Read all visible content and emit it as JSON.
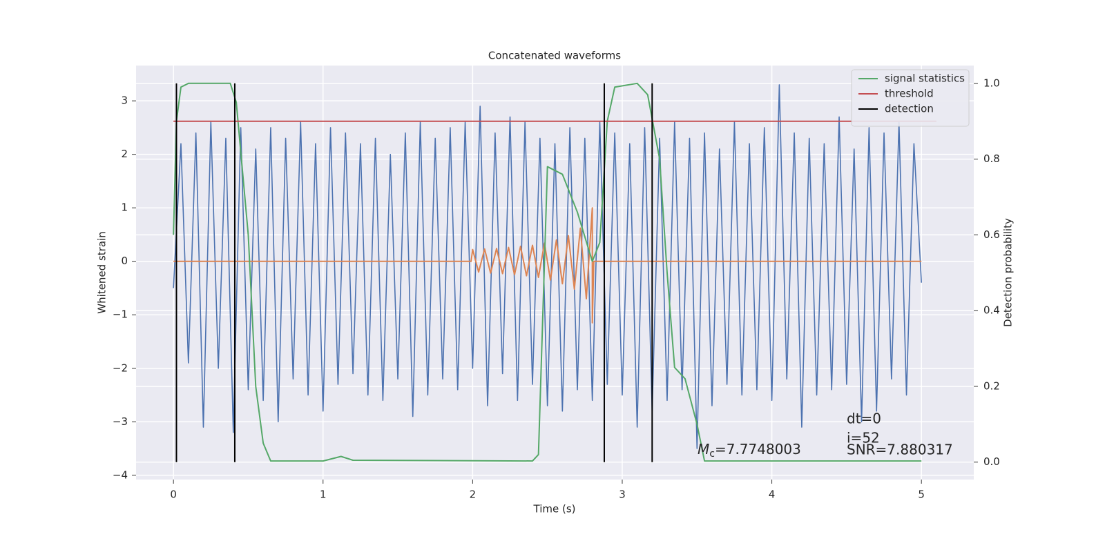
{
  "chart_data": {
    "type": "line",
    "title": "Concatenated waveforms",
    "xlabel": "Time (s)",
    "ylabel": "Whitened strain",
    "y2label": "Detection probability",
    "xlim": [
      -0.25,
      5.35
    ],
    "ylim": [
      -4.08,
      3.66
    ],
    "y2lim": [
      -0.046,
      1.047
    ],
    "xticks": [
      0,
      1,
      2,
      3,
      4,
      5
    ],
    "yticks": [
      {
        "value": -4,
        "label": "−4"
      },
      {
        "value": -3,
        "label": "−3"
      },
      {
        "value": -2,
        "label": "−2"
      },
      {
        "value": -1,
        "label": "−1"
      },
      0,
      1,
      2,
      3
    ],
    "y2ticks": [
      {
        "value": 0,
        "label": "0.0"
      },
      0.2,
      0.4,
      0.6,
      0.8,
      {
        "value": 1,
        "label": "1.0"
      }
    ],
    "grid": true,
    "legend": "upper right",
    "series": [
      {
        "color": "#4c72b0",
        "x": [
          0,
          0.05,
          0.1,
          0.15,
          0.2,
          0.25,
          0.3,
          0.35,
          0.4,
          0.45,
          0.5,
          0.55,
          0.6,
          0.65,
          0.7,
          0.75,
          0.8,
          0.85,
          0.9,
          0.95,
          1,
          1.05,
          1.1,
          1.15,
          1.2,
          1.25,
          1.3,
          1.35,
          1.4,
          1.45,
          1.5,
          1.55,
          1.6,
          1.65,
          1.7,
          1.75,
          1.8,
          1.85,
          1.9,
          1.95,
          2,
          2.05,
          2.1,
          2.15,
          2.2,
          2.25,
          2.3,
          2.35,
          2.4,
          2.45,
          2.5,
          2.55,
          2.6,
          2.65,
          2.7,
          2.75,
          2.8,
          2.85,
          2.9,
          2.95,
          3,
          3.05,
          3.1,
          3.15,
          3.2,
          3.25,
          3.3,
          3.35,
          3.4,
          3.45,
          3.5,
          3.55,
          3.6,
          3.65,
          3.7,
          3.75,
          3.8,
          3.85,
          3.9,
          3.95,
          4,
          4.05,
          4.1,
          4.15,
          4.2,
          4.25,
          4.3,
          4.35,
          4.4,
          4.45,
          4.5,
          4.55,
          4.6,
          4.65,
          4.7,
          4.75,
          4.8,
          4.85,
          4.9,
          4.95,
          5
        ],
        "values": [
          -0.5,
          2.2,
          -1.9,
          2.4,
          -3.1,
          2.6,
          -2.0,
          2.3,
          -3.2,
          2.5,
          -2.4,
          2.1,
          -2.6,
          2.5,
          -3.0,
          2.3,
          -2.2,
          2.6,
          -2.5,
          2.2,
          -2.8,
          2.5,
          -2.3,
          2.4,
          -2.1,
          2.2,
          -2.5,
          2.3,
          -2.6,
          2.0,
          -2.2,
          2.4,
          -2.9,
          2.6,
          -2.5,
          2.3,
          -2.2,
          2.5,
          -2.4,
          2.6,
          -2.0,
          2.9,
          -2.7,
          2.4,
          -2.1,
          2.7,
          -2.6,
          2.6,
          -2.3,
          2.3,
          -2.7,
          2.2,
          -2.8,
          2.5,
          -2.4,
          2.3,
          -2.6,
          2.6,
          -2.3,
          2.4,
          -2.5,
          2.2,
          -3.1,
          2.5,
          -2.8,
          2.3,
          -2.6,
          2.6,
          -2.4,
          2.3,
          -3.5,
          2.4,
          -2.7,
          2.1,
          -2.3,
          2.6,
          -2.5,
          2.2,
          -2.4,
          2.5,
          -2.6,
          3.3,
          -2.2,
          2.4,
          -3.1,
          2.3,
          -2.5,
          2.2,
          -2.4,
          2.7,
          -2.3,
          2.1,
          -3.0,
          2.5,
          -2.8,
          2.4,
          -2.2,
          2.6,
          -2.5,
          2.2,
          -0.4
        ]
      },
      {
        "color": "#dd8452",
        "x": [
          0,
          1.99,
          2.0,
          2.04,
          2.08,
          2.12,
          2.16,
          2.2,
          2.24,
          2.28,
          2.32,
          2.36,
          2.4,
          2.44,
          2.48,
          2.52,
          2.56,
          2.6,
          2.64,
          2.68,
          2.72,
          2.76,
          2.8,
          2.8,
          2.81,
          5
        ],
        "values": [
          0,
          0,
          0.22,
          -0.2,
          0.23,
          -0.22,
          0.24,
          -0.23,
          0.26,
          -0.25,
          0.28,
          -0.27,
          0.3,
          -0.3,
          0.34,
          -0.35,
          0.4,
          -0.42,
          0.48,
          -0.52,
          0.62,
          -0.7,
          1.0,
          -1.15,
          0,
          0
        ]
      },
      {
        "name": "signal statistics",
        "color": "#55a868",
        "axis": "y2",
        "x": [
          0,
          0.02,
          0.05,
          0.1,
          0.38,
          0.42,
          0.5,
          0.55,
          0.6,
          0.65,
          1.0,
          1.12,
          1.2,
          2.4,
          2.44,
          2.47,
          2.5,
          2.6,
          2.7,
          2.8,
          2.85,
          2.9,
          2.95,
          3.1,
          3.17,
          3.25,
          3.3,
          3.35,
          3.42,
          3.5,
          3.55,
          5
        ],
        "values": [
          0.6,
          0.9,
          0.99,
          1.0,
          1.0,
          0.95,
          0.6,
          0.2,
          0.05,
          0.003,
          0.003,
          0.015,
          0.005,
          0.003,
          0.02,
          0.4,
          0.78,
          0.76,
          0.66,
          0.53,
          0.58,
          0.9,
          0.99,
          1.0,
          0.97,
          0.8,
          0.5,
          0.25,
          0.22,
          0.1,
          0.003,
          0.003
        ]
      },
      {
        "name": "threshold",
        "color": "#c44e52",
        "axis": "y2",
        "x": [
          0,
          5.1
        ],
        "values": [
          0.9,
          0.9
        ]
      }
    ],
    "vlines": {
      "name": "detection",
      "color": "#000000",
      "axis": "y2",
      "x": [
        0.02,
        0.41,
        2.88,
        3.2
      ],
      "ymin": 0,
      "ymax": 1
    },
    "annotations": [
      {
        "symbol": "M",
        "subscript": "c",
        "text": "=7.7748003"
      },
      "dt=0",
      "i=52",
      "SNR=7.880317"
    ]
  }
}
